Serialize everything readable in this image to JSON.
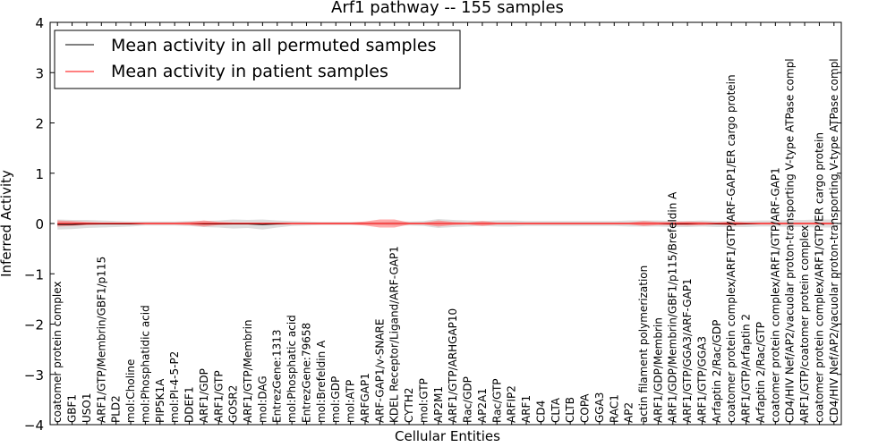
{
  "chart_data": {
    "type": "line",
    "title": "Arf1 pathway -- 155 samples",
    "xlabel": "Cellular Entities",
    "ylabel": "Inferred Activity",
    "ylim": [
      -4,
      4
    ],
    "yticks": [
      "4",
      "3",
      "2",
      "1",
      "0",
      "−1",
      "−2",
      "−3",
      "−4"
    ],
    "grid": false,
    "legend_position": "top-left",
    "colors": {
      "permuted": "#000000",
      "patient": "#ff0000",
      "permuted_band": "#c8c8c8",
      "patient_band": "#ff6666"
    },
    "categories": [
      "coatomer protein complex",
      "GBF1",
      "USO1",
      "ARF1/GTP/Membrin/GBF1/p115",
      "PLD2",
      "mol:Choline",
      "mol:Phosphatidic acid",
      "PIP5K1A",
      "mol:PI-4-5-P2",
      "DDEF1",
      "ARF1/GDP",
      "ARF1/GTP",
      "GOSR2",
      "ARF1/GTP/Membrin",
      "mol:DAG",
      "EntrezGene:1313",
      "mol:Phosphatic acid",
      "EntrezGene:79658",
      "mol:Brefeldin A",
      "mol:GDP",
      "mol:ATP",
      "ARFGAP1",
      "ARF-GAP1/v-SNARE",
      "KDEL Receptor/Ligand/ARF-GAP1",
      "CYTH2",
      "mol:GTP",
      "AP2M1",
      "ARF1/GTP/ARHGAP10",
      "Rac/GDP",
      "AP2A1",
      "Rac/GTP",
      "ARFIP2",
      "ARF1",
      "CD4",
      "CLTA",
      "CLTB",
      "COPA",
      "GGA3",
      "RAC1",
      "AP2",
      "actin filament polymerization",
      "ARF1/GDP/Membrin",
      "ARF1/GDP/Membrin/GBF1/p115/Brefeldin A",
      "ARF1/GTP/GGA3/ARF-GAP1",
      "ARF1/GTP/GGA3",
      "Arfaptin 2/Rac/GDP",
      "coatomer protein complex/ARF1/GTP/ARF-GAP1/ER cargo protein",
      "ARF1/GTP/Arfaptin 2",
      "Arfaptin 2/Rac/GTP",
      "coatomer protein complex/ARF1/GTP/ARF-GAP1",
      "CD4/HIV Nef/AP2/vacuolar proton-transporting V-type ATPase compl",
      "ARF1/GTP/coatomer protein complex",
      "coatomer protein complex/ARF1/GTP/ER cargo protein",
      "CD4/HIV Nef/AP2/vacuolar proton-transporting V-type ATPase compl"
    ],
    "series": [
      {
        "name": "Mean activity in all permuted samples",
        "values": [
          -0.02,
          -0.02,
          -0.01,
          -0.01,
          -0.01,
          -0.01,
          0,
          0,
          0,
          0,
          -0.01,
          -0.01,
          -0.01,
          -0.01,
          -0.02,
          -0.01,
          0,
          0,
          0,
          0,
          0,
          0,
          0,
          0,
          0,
          0,
          0,
          0,
          0,
          0,
          0,
          0,
          0,
          0,
          0,
          0,
          0,
          0,
          0,
          0,
          0,
          0,
          -0.01,
          -0.01,
          0,
          -0.01,
          -0.01,
          -0.01,
          0,
          0,
          0,
          0,
          0,
          0
        ],
        "band": [
          0.1,
          0.09,
          0.08,
          0.07,
          0.06,
          0.05,
          0.04,
          0.04,
          0.04,
          0.05,
          0.06,
          0.07,
          0.09,
          0.08,
          0.1,
          0.07,
          0.05,
          0.04,
          0.03,
          0.03,
          0.03,
          0.03,
          0.03,
          0.04,
          0.04,
          0.05,
          0.09,
          0.07,
          0.06,
          0.05,
          0.06,
          0.06,
          0.05,
          0.05,
          0.05,
          0.05,
          0.05,
          0.05,
          0.05,
          0.06,
          0.06,
          0.06,
          0.06,
          0.06,
          0.06,
          0.06,
          0.06,
          0.06,
          0.06,
          0.06,
          0.07,
          0.07,
          0.08,
          0.08
        ]
      },
      {
        "name": "Mean activity in patient samples",
        "values": [
          0,
          0,
          0,
          0,
          0,
          0,
          0,
          0,
          0,
          0,
          0,
          0,
          0,
          0,
          0,
          0,
          0,
          0,
          0,
          0,
          0,
          0,
          0,
          0,
          0,
          0,
          0,
          0,
          0,
          0,
          0,
          0,
          0,
          0,
          0,
          0,
          0,
          0,
          0,
          0,
          0,
          0,
          0,
          0,
          0,
          0,
          0,
          0,
          0,
          0,
          0,
          0,
          0,
          0
        ],
        "band": [
          0.06,
          0.05,
          0.03,
          0.02,
          0.02,
          0.02,
          0.02,
          0.02,
          0.02,
          0.03,
          0.06,
          0.03,
          0.02,
          0.02,
          0.02,
          0.02,
          0.02,
          0.02,
          0.02,
          0.02,
          0.02,
          0.04,
          0.08,
          0.08,
          0.02,
          0.02,
          0.06,
          0.03,
          0.02,
          0.05,
          0.02,
          0.02,
          0.02,
          0.02,
          0.02,
          0.02,
          0.02,
          0.02,
          0.02,
          0.02,
          0.05,
          0.03,
          0.03,
          0.04,
          0.03,
          0.02,
          0.04,
          0.02,
          0.02,
          0.02,
          0.02,
          0.02,
          0.02,
          0.02
        ]
      }
    ]
  }
}
